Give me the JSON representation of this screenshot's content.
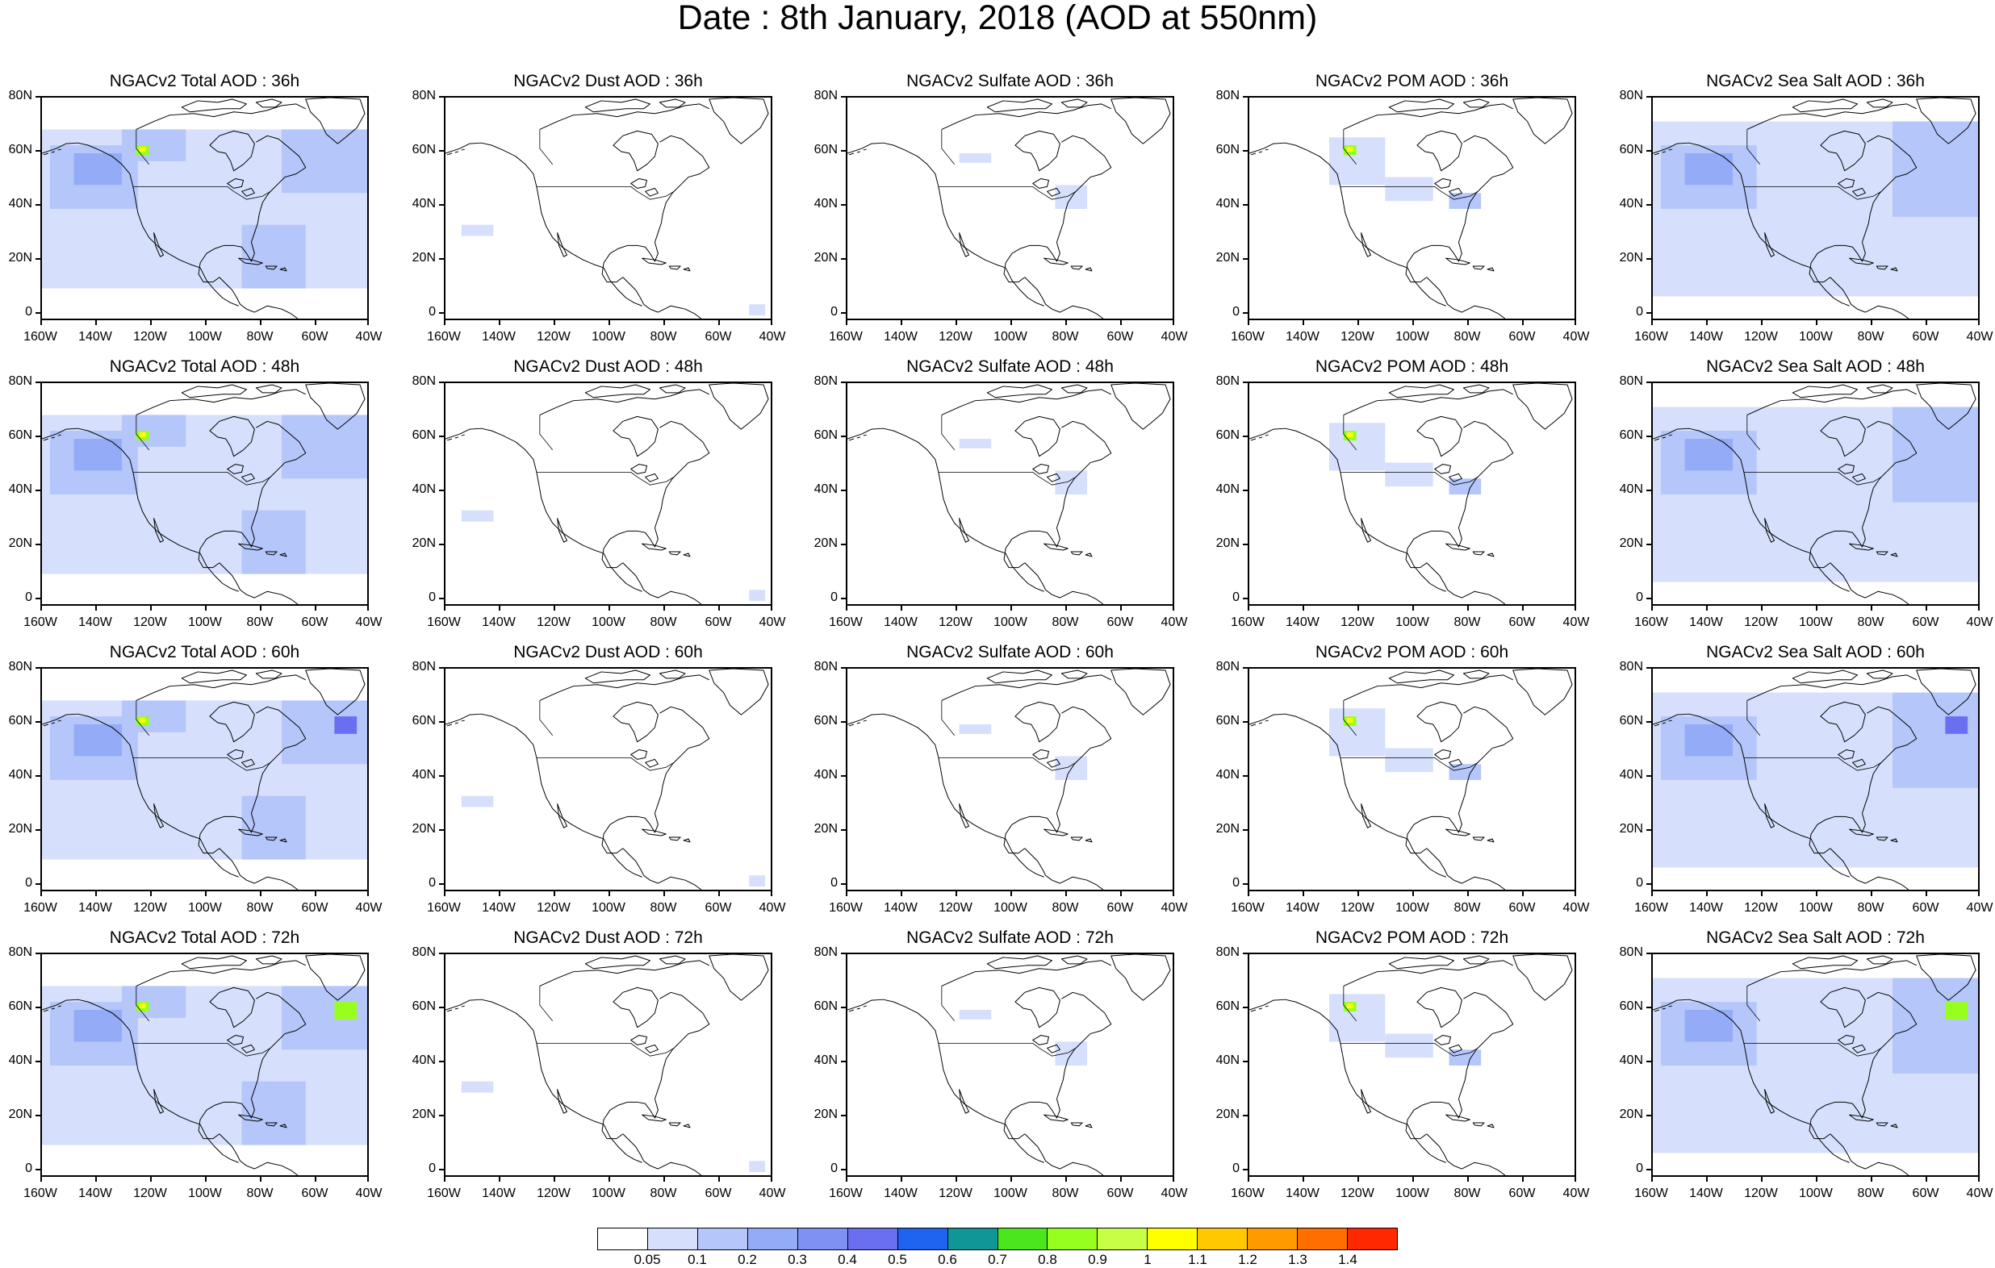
{
  "title": "Date : 8th January, 2018 (AOD at 550nm)",
  "lat_ticks": [
    "80N",
    "60N",
    "40N",
    "20N",
    "0"
  ],
  "lon_ticks": [
    "160W",
    "140W",
    "120W",
    "100W",
    "80W",
    "60W",
    "40W"
  ],
  "columns": [
    "Total",
    "Dust",
    "Sulfate",
    "POM",
    "Sea Salt"
  ],
  "rows": [
    "36h",
    "48h",
    "60h",
    "72h"
  ],
  "panels": [
    [
      "NGACv2 Total AOD : 36h",
      "NGACv2 Dust AOD : 36h",
      "NGACv2 Sulfate AOD : 36h",
      "NGACv2 POM AOD : 36h",
      "NGACv2 Sea Salt AOD : 36h"
    ],
    [
      "NGACv2 Total AOD : 48h",
      "NGACv2 Dust AOD : 48h",
      "NGACv2 Sulfate AOD : 48h",
      "NGACv2 POM AOD : 48h",
      "NGACv2 Sea Salt AOD : 48h"
    ],
    [
      "NGACv2 Total AOD : 60h",
      "NGACv2 Dust AOD : 60h",
      "NGACv2 Sulfate AOD : 60h",
      "NGACv2 POM AOD : 60h",
      "NGACv2 Sea Salt AOD : 60h"
    ],
    [
      "NGACv2 Total AOD : 72h",
      "NGACv2 Dust AOD : 72h",
      "NGACv2 Sulfate AOD : 72h",
      "NGACv2 POM AOD : 72h",
      "NGACv2 Sea Salt  AOD : 72h"
    ]
  ],
  "colorbar": {
    "labels": [
      "0.05",
      "0.1",
      "0.2",
      "0.3",
      "0.4",
      "0.5",
      "0.6",
      "0.7",
      "0.8",
      "0.9",
      "1",
      "1.1",
      "1.2",
      "1.3",
      "1.4"
    ],
    "colors": [
      "#ffffff",
      "#d6e0fc",
      "#b4c6fa",
      "#94acf7",
      "#7f92f4",
      "#6a6ef0",
      "#1e64f0",
      "#0f9696",
      "#4ce61e",
      "#96ff1e",
      "#c8ff46",
      "#ffff00",
      "#ffc800",
      "#ff9b00",
      "#ff6e00",
      "#ff2800"
    ]
  }
}
